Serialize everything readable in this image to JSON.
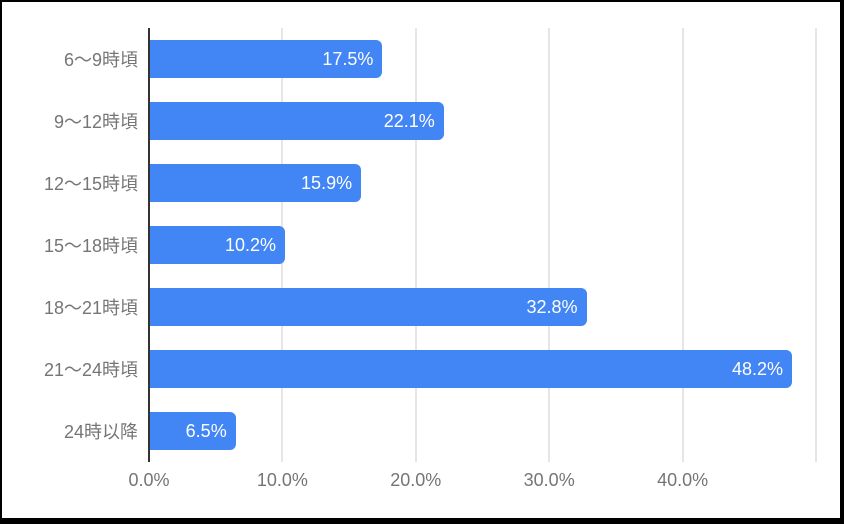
{
  "chart_data": {
    "type": "bar",
    "orientation": "horizontal",
    "title": "",
    "categories": [
      "6〜9時頃",
      "9〜12時頃",
      "12〜15時頃",
      "15〜18時頃",
      "18〜21時頃",
      "21〜24時頃",
      "24時以降"
    ],
    "values": [
      17.5,
      22.1,
      15.9,
      10.2,
      32.8,
      48.2,
      6.5
    ],
    "value_labels": [
      "17.5%",
      "22.1%",
      "15.9%",
      "10.2%",
      "32.8%",
      "48.2%",
      "6.5%"
    ],
    "x_ticks": [
      "0.0%",
      "10.0%",
      "20.0%",
      "30.0%",
      "40.0%"
    ],
    "x_tick_values": [
      0,
      10,
      20,
      30,
      40
    ],
    "xlim": [
      0,
      50
    ],
    "gridline_step": 10,
    "grid": "vertical-only",
    "legend": "none",
    "colors": {
      "bar": "#4285f4",
      "value_label": "#ffffff",
      "axis_label": "#757575",
      "gridline": "#cccccc",
      "axis_line": "#333333",
      "background": "#ffffff",
      "window_border": "#000000"
    }
  }
}
